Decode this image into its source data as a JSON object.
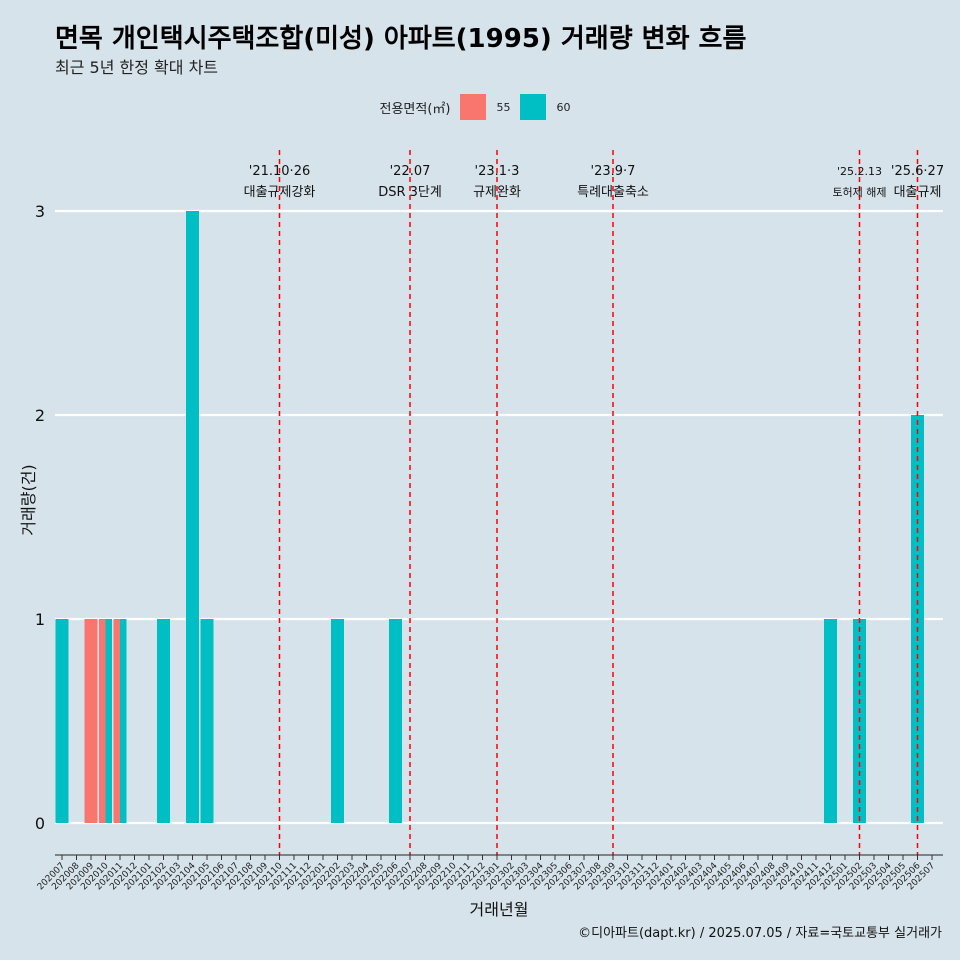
{
  "header": {
    "title": "면목 개인택시주택조합(미성) 아파트(1995) 거래량 변화 흐름",
    "subtitle": "최근 5년 한정 확대 차트"
  },
  "legend": {
    "title": "전용면적(㎡)",
    "items": [
      {
        "label": "55",
        "color": "#f8766d"
      },
      {
        "label": "60",
        "color": "#00bfc4"
      }
    ]
  },
  "caption": "©디아파트(dapt.kr) / 2025.07.05 / 자료=국토교통부 실거래가",
  "chart_data": {
    "type": "bar",
    "xlabel": "거래년월",
    "ylabel": "거래량(건)",
    "ylim": [
      0,
      3
    ],
    "yticks": [
      0,
      1,
      2,
      3
    ],
    "categories": [
      "202007",
      "202008",
      "202009",
      "202010",
      "202011",
      "202012",
      "202101",
      "202102",
      "202103",
      "202104",
      "202105",
      "202106",
      "202107",
      "202108",
      "202109",
      "202110",
      "202111",
      "202112",
      "202201",
      "202202",
      "202203",
      "202204",
      "202205",
      "202206",
      "202207",
      "202208",
      "202209",
      "202210",
      "202211",
      "202212",
      "202301",
      "202302",
      "202303",
      "202304",
      "202305",
      "202306",
      "202307",
      "202308",
      "202309",
      "202310",
      "202311",
      "202312",
      "202401",
      "202402",
      "202403",
      "202404",
      "202405",
      "202406",
      "202407",
      "202408",
      "202409",
      "202410",
      "202411",
      "202412",
      "202501",
      "202502",
      "202503",
      "202504",
      "202505",
      "202506",
      "202507"
    ],
    "series": [
      {
        "name": "55",
        "color": "#f8766d",
        "values": [
          0,
          0,
          1,
          1,
          1,
          0,
          0,
          0,
          0,
          0,
          0,
          0,
          0,
          0,
          0,
          0,
          0,
          0,
          0,
          0,
          0,
          0,
          0,
          0,
          0,
          0,
          0,
          0,
          0,
          0,
          0,
          0,
          0,
          0,
          0,
          0,
          0,
          0,
          0,
          0,
          0,
          0,
          0,
          0,
          0,
          0,
          0,
          0,
          0,
          0,
          0,
          0,
          0,
          0,
          0,
          0,
          0,
          0,
          0,
          0,
          0
        ]
      },
      {
        "name": "60",
        "color": "#00bfc4",
        "values": [
          1,
          0,
          0,
          1,
          1,
          0,
          0,
          1,
          0,
          3,
          1,
          0,
          0,
          0,
          0,
          0,
          0,
          0,
          0,
          1,
          0,
          0,
          0,
          1,
          0,
          0,
          0,
          0,
          0,
          0,
          0,
          0,
          0,
          0,
          0,
          0,
          0,
          0,
          0,
          0,
          0,
          0,
          0,
          0,
          0,
          0,
          0,
          0,
          0,
          0,
          0,
          0,
          0,
          1,
          0,
          1,
          0,
          0,
          0,
          2,
          0
        ]
      }
    ],
    "annotations": [
      {
        "x": "202110",
        "date": "'21.10·26",
        "text": "대출규제강화"
      },
      {
        "x": "202207",
        "date": "'22.07",
        "text": "DSR 3단계"
      },
      {
        "x": "202301",
        "date": "'23.1·3",
        "text": "규제완화"
      },
      {
        "x": "202309",
        "date": "'23.9·7",
        "text": "특례대출축소"
      },
      {
        "x": "202502",
        "date": "'25.2.13",
        "text": "토허제 해제"
      },
      {
        "x": "202506",
        "date": "'25.6·27",
        "text": "대출규제"
      }
    ]
  }
}
